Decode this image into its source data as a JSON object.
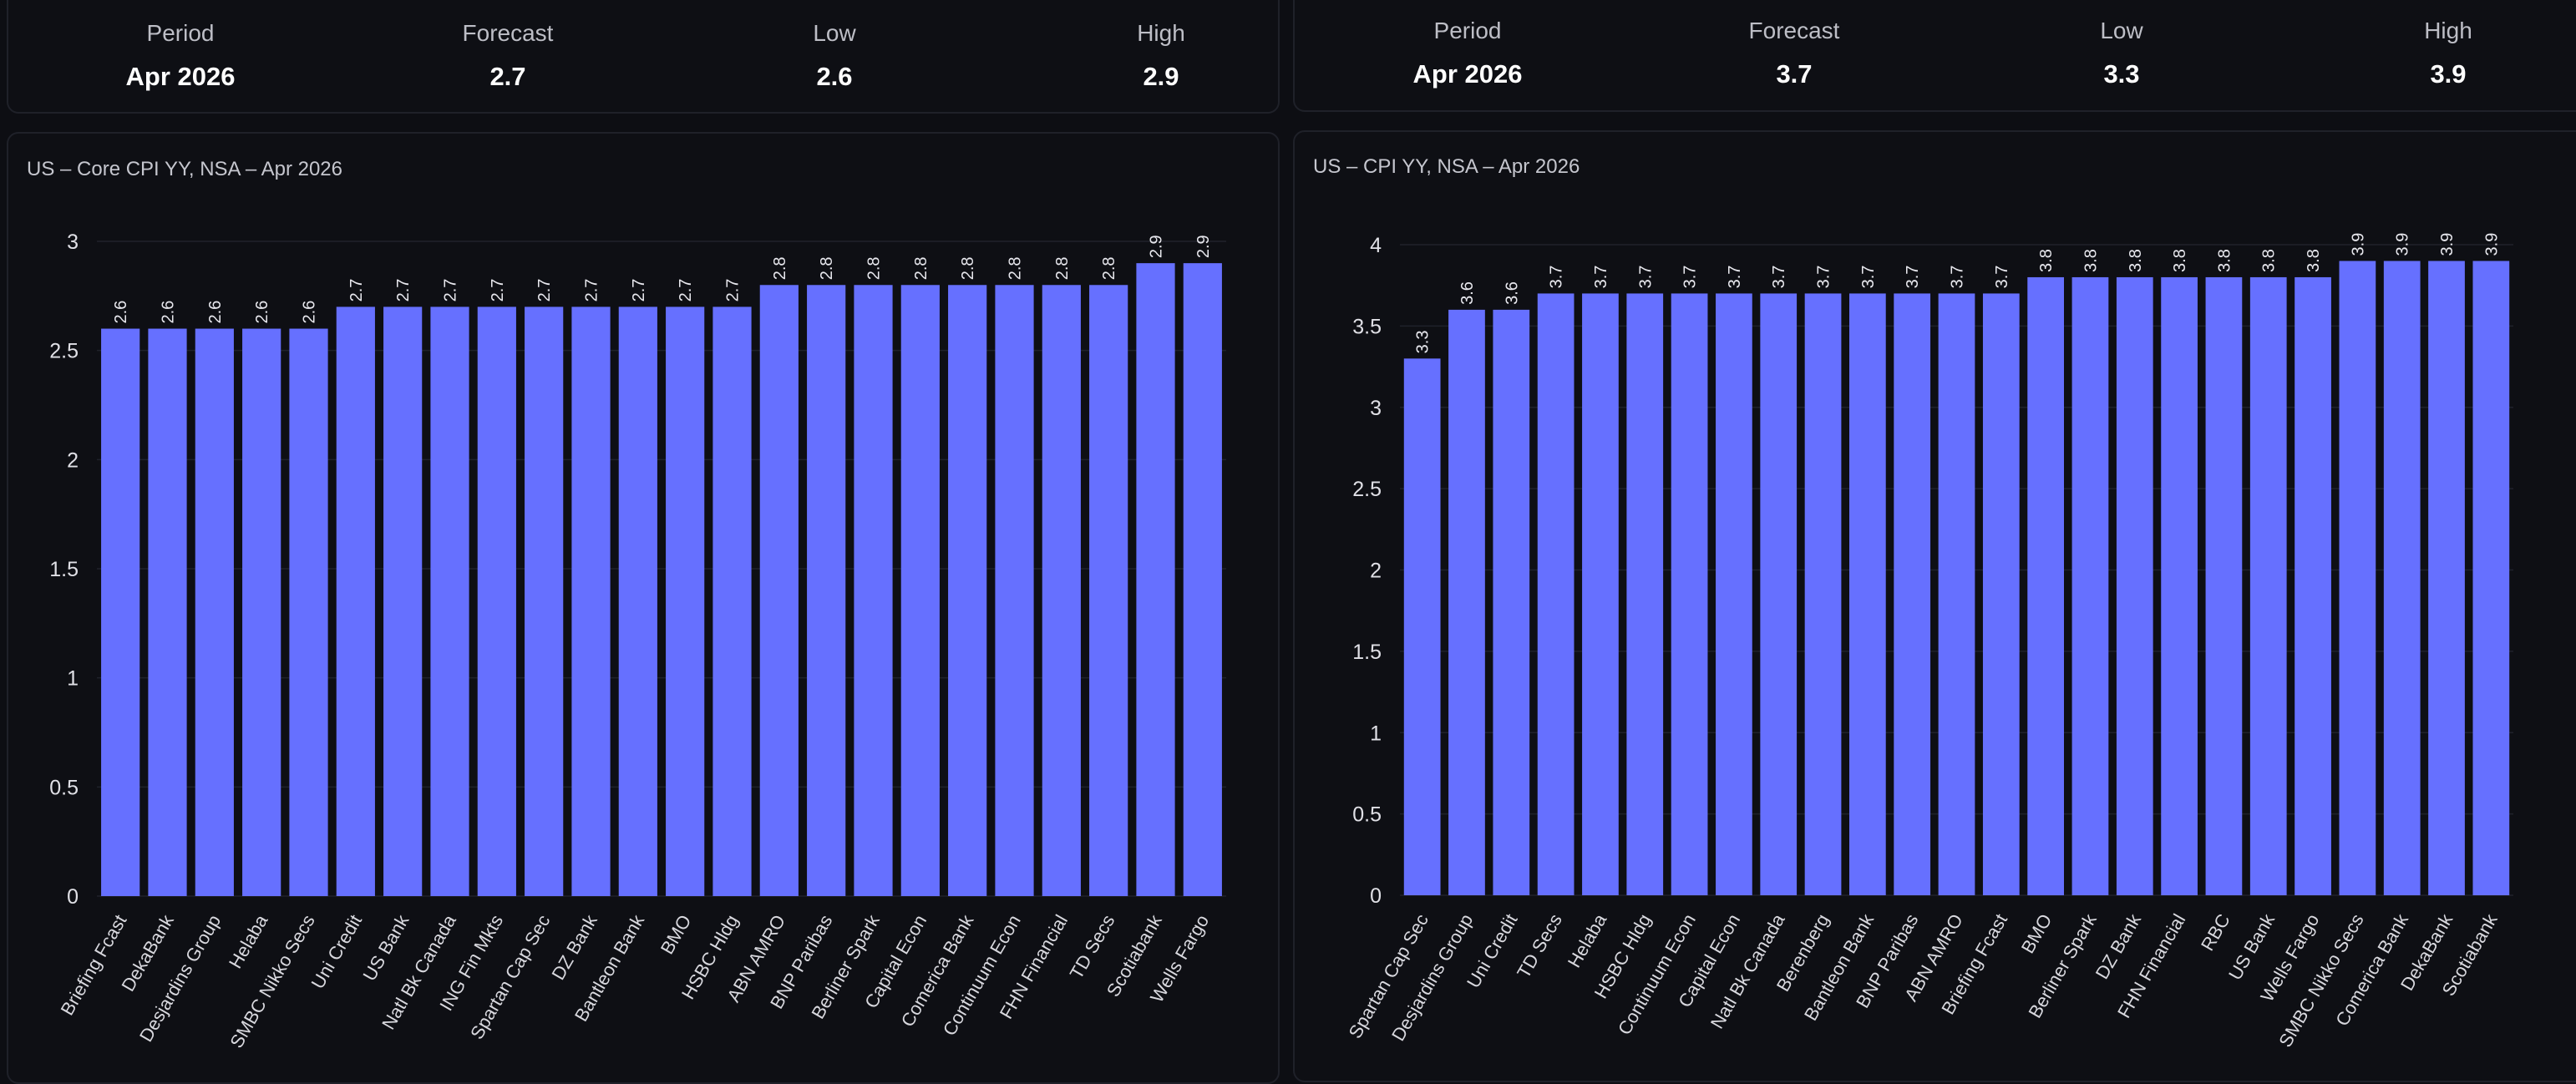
{
  "colors": {
    "bar": "#6670ff",
    "background": "#0d0e13",
    "panel_border": "#1f2129"
  },
  "left": {
    "summary": {
      "period_label": "Period",
      "period_value": "Apr 2026",
      "forecast_label": "Forecast",
      "forecast_value": "2.7",
      "low_label": "Low",
      "low_value": "2.6",
      "high_label": "High",
      "high_value": "2.9"
    },
    "chart_data": {
      "type": "bar",
      "title": "US – Core CPI YY, NSA – Apr 2026",
      "xlabel": "",
      "ylabel": "",
      "ylim": [
        0,
        3
      ],
      "yticks": [
        0,
        0.5,
        1,
        1.5,
        2,
        2.5,
        3
      ],
      "grid": true,
      "data_labels": true,
      "categories": [
        "Briefing Fcast",
        "DekaBank",
        "Desjardins Group",
        "Helaba",
        "SMBC Nikko Secs",
        "Uni Credit",
        "US Bank",
        "Natl Bk Canada",
        "ING Fin Mkts",
        "Spartan Cap Sec",
        "DZ Bank",
        "Bantleon Bank",
        "BMO",
        "HSBC Hldg",
        "ABN AMRO",
        "BNP Paribas",
        "Berliner Spark",
        "Capital Econ",
        "Comerica Bank",
        "Continuum Econ",
        "FHN Financial",
        "TD Secs",
        "Scotiabank",
        "Wells Fargo"
      ],
      "values": [
        2.6,
        2.6,
        2.6,
        2.6,
        2.6,
        2.7,
        2.7,
        2.7,
        2.7,
        2.7,
        2.7,
        2.7,
        2.7,
        2.7,
        2.8,
        2.8,
        2.8,
        2.8,
        2.8,
        2.8,
        2.8,
        2.8,
        2.9,
        2.9
      ]
    }
  },
  "right": {
    "summary": {
      "period_label": "Period",
      "period_value": "Apr 2026",
      "forecast_label": "Forecast",
      "forecast_value": "3.7",
      "low_label": "Low",
      "low_value": "3.3",
      "high_label": "High",
      "high_value": "3.9"
    },
    "chart_data": {
      "type": "bar",
      "title": "US – CPI YY, NSA – Apr 2026",
      "xlabel": "",
      "ylabel": "",
      "ylim": [
        0,
        4
      ],
      "yticks": [
        0,
        0.5,
        1,
        1.5,
        2,
        2.5,
        3,
        3.5,
        4
      ],
      "grid": true,
      "data_labels": true,
      "categories": [
        "Spartan Cap Sec",
        "Desjardins Group",
        "Uni Credit",
        "TD Secs",
        "Helaba",
        "HSBC Hldg",
        "Continuum Econ",
        "Capital Econ",
        "Natl Bk Canada",
        "Berenberg",
        "Bantleon Bank",
        "BNP Paribas",
        "ABN AMRO",
        "Briefing Fcast",
        "BMO",
        "Berliner Spark",
        "DZ Bank",
        "FHN Financial",
        "RBC",
        "US Bank",
        "Wells Fargo",
        "SMBC Nikko Secs",
        "Comerica Bank",
        "DekaBank",
        "Scotiabank"
      ],
      "values": [
        3.3,
        3.6,
        3.6,
        3.7,
        3.7,
        3.7,
        3.7,
        3.7,
        3.7,
        3.7,
        3.7,
        3.7,
        3.7,
        3.7,
        3.8,
        3.8,
        3.8,
        3.8,
        3.8,
        3.8,
        3.8,
        3.9,
        3.9,
        3.9,
        3.9
      ]
    }
  }
}
